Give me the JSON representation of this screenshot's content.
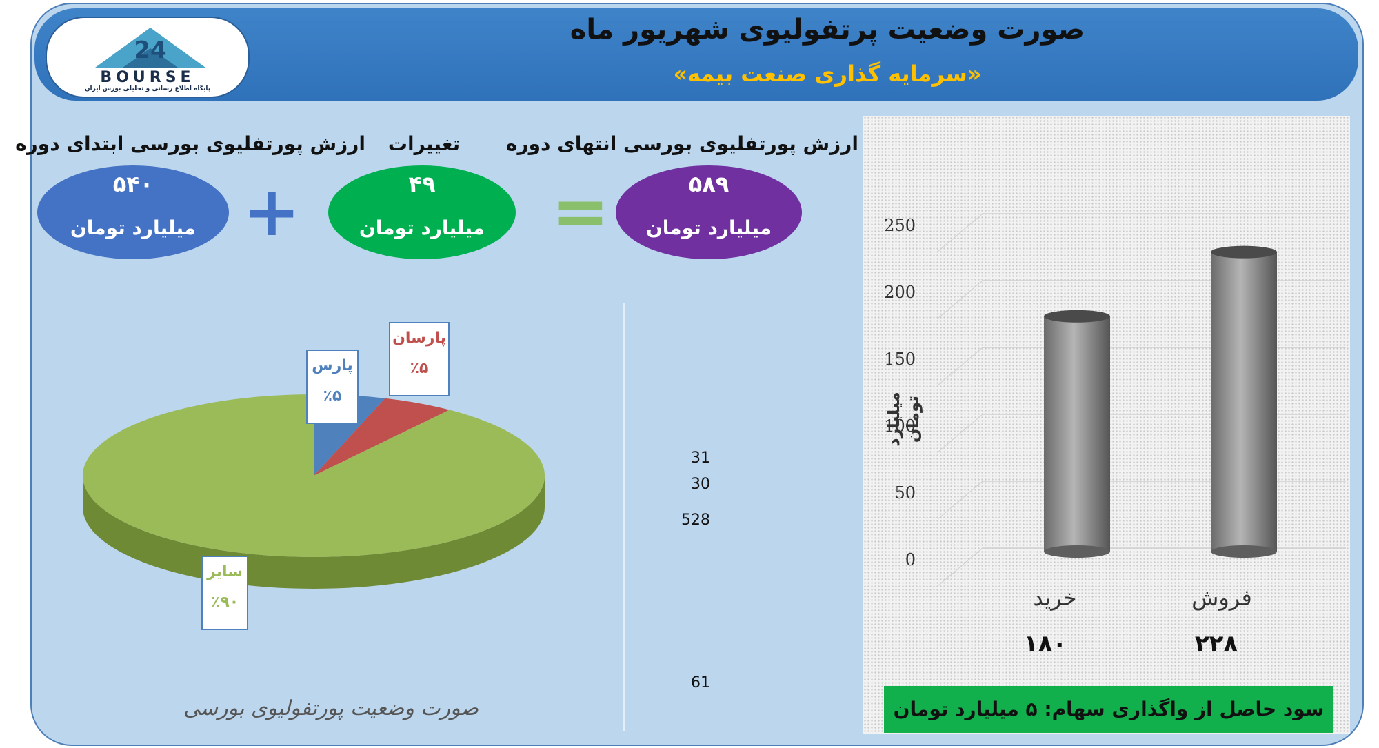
{
  "header": {
    "title": "صورت وضعیت پرتفولیوی شهریور ماه",
    "subtitle": "«سرمایه گذاری صنعت بیمه»",
    "logo_text": "BOURSE",
    "logo_sub": "پایگاه اطلاع رسانی و تحلیلی بورس ایران"
  },
  "summary": {
    "end": {
      "label": "ارزش پورتفلیوی بورسی انتهای دوره",
      "value": "۵۸۹",
      "unit": "میلیارد تومان",
      "color": "#7030a0"
    },
    "change": {
      "label": "تغییرات",
      "value": "۴۹",
      "unit": "میلیارد تومان",
      "color": "#00b050"
    },
    "start": {
      "label": "ارزش پورتفلیوی بورسی ابتدای دوره",
      "value": "۵۴۰",
      "unit": "میلیارد تومان",
      "color": "#4472c4"
    },
    "equals": "=",
    "plus": "+"
  },
  "side_numbers": [
    "31",
    "30",
    "528",
    "61"
  ],
  "chart_data": [
    {
      "type": "pie",
      "title": "صورت وضعیت پورتفولیوی بورسی",
      "slices": [
        {
          "label": "پارس",
          "pct_label": "٪۵",
          "value": 5,
          "color": "#4f81bd"
        },
        {
          "label": "پارسان",
          "pct_label": "٪۵",
          "value": 5,
          "color": "#c0504d"
        },
        {
          "label": "سایر",
          "pct_label": "٪۹۰",
          "value": 90,
          "color": "#9bbb59"
        }
      ]
    },
    {
      "type": "bar",
      "categories": [
        "خرید",
        "فروش"
      ],
      "values": [
        180,
        228
      ],
      "value_labels": [
        "۱۸۰",
        "۲۲۸"
      ],
      "ylabel": "میلیارد تومان",
      "ylim": [
        0,
        250
      ],
      "yticks": [
        "0",
        "50",
        "100",
        "150",
        "200",
        "250"
      ],
      "grid": true
    }
  ],
  "profit_note": "سود حاصل از واگذاری سهام: ۵ میلیارد تومان"
}
